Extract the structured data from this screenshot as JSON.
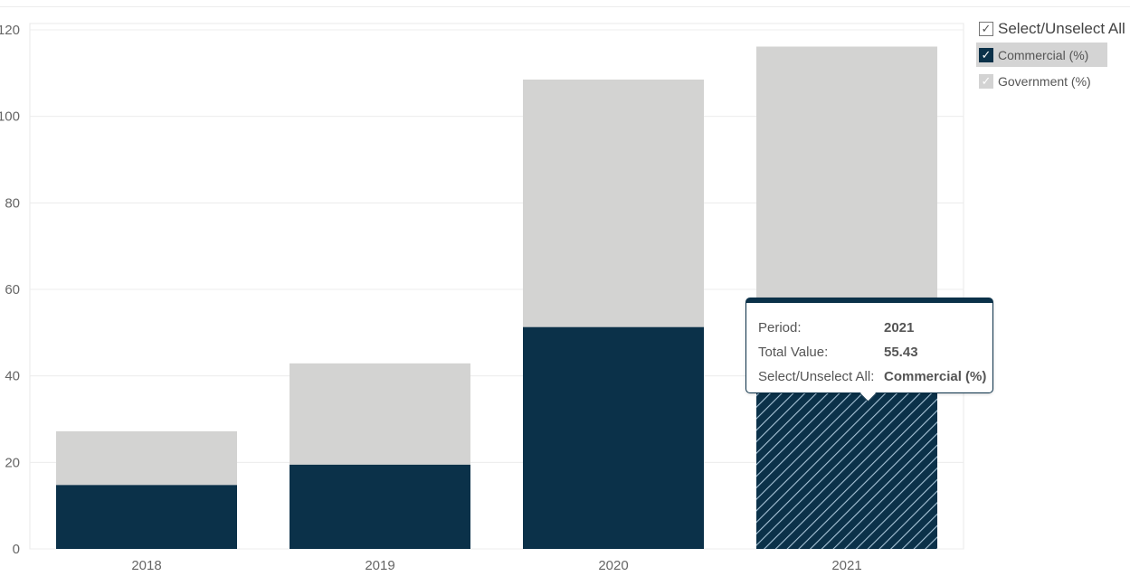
{
  "chart_data": {
    "type": "bar",
    "stacked": true,
    "categories": [
      "2018",
      "2019",
      "2020",
      "2021"
    ],
    "series": [
      {
        "name": "Commercial (%)",
        "color": "#0b3149",
        "values": [
          14.8,
          19.5,
          51.3,
          55.43
        ]
      },
      {
        "name": "Government (%)",
        "color": "#d3d3d2",
        "values": [
          12.4,
          23.4,
          57.2,
          60.7
        ]
      }
    ],
    "ylim": [
      0,
      120
    ],
    "yticks": [
      "0",
      "20",
      "40",
      "60",
      "80",
      "100",
      "120"
    ],
    "grid": true,
    "legend_position": "right",
    "highlighted_category": "2021"
  },
  "legend": {
    "select_all_label": "Select/Unselect All",
    "items": [
      {
        "label": "Commercial (%)",
        "check": "✓"
      },
      {
        "label": "Government (%)",
        "check": "✓"
      }
    ],
    "select_all_check": "✓"
  },
  "tooltip": {
    "rows": [
      {
        "key": "Period:",
        "value": "2021"
      },
      {
        "key": "Total Value:",
        "value": "55.43"
      },
      {
        "key": "Select/Unselect All:",
        "value": "Commercial (%)"
      }
    ]
  }
}
